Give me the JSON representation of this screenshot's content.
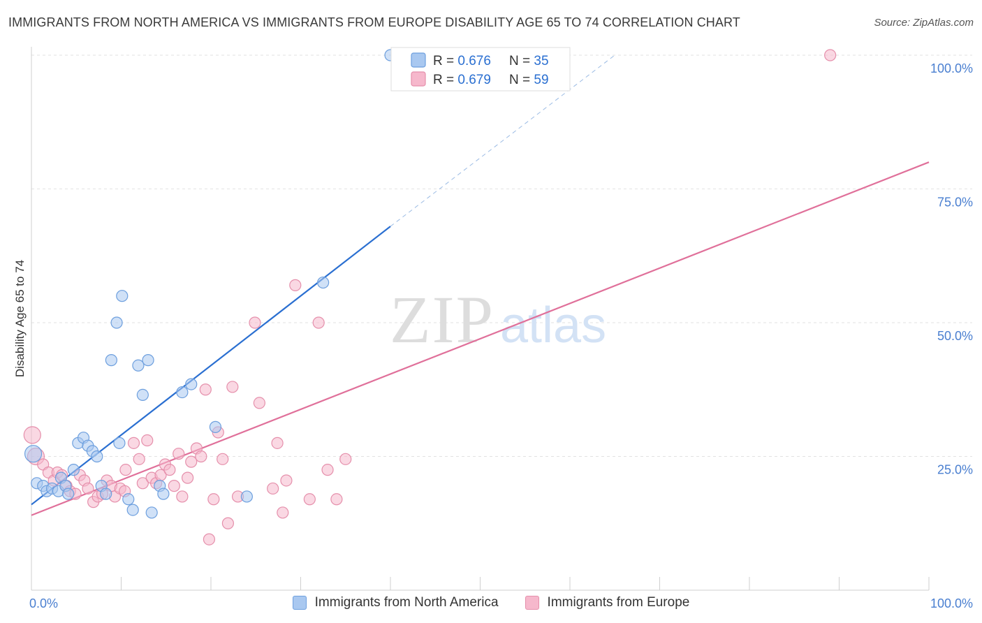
{
  "header": {
    "title": "IMMIGRANTS FROM NORTH AMERICA VS IMMIGRANTS FROM EUROPE DISABILITY AGE 65 TO 74 CORRELATION CHART",
    "source": "Source: ZipAtlas.com"
  },
  "watermark": {
    "zip": "ZIP",
    "atlas": "atlas"
  },
  "colors": {
    "blue_fill": "#a9c8f0",
    "blue_stroke": "#6d9fde",
    "blue_line": "#2a6fd1",
    "pink_fill": "#f6b8cc",
    "pink_stroke": "#e58fab",
    "pink_line": "#e0709a",
    "axis_label_blue": "#4a7fd0"
  },
  "legend_box": {
    "rows": [
      {
        "r_label": "R = ",
        "r_value": "0.676",
        "n_label": "N = ",
        "n_value": "35"
      },
      {
        "r_label": "R = ",
        "r_value": "0.679",
        "n_label": "N = ",
        "n_value": "59"
      }
    ]
  },
  "legend_bottom": {
    "north_america": "Immigrants from North America",
    "europe": "Immigrants from Europe"
  },
  "chart_data": {
    "type": "scatter",
    "title": "IMMIGRANTS FROM NORTH AMERICA VS IMMIGRANTS FROM EUROPE DISABILITY AGE 65 TO 74 CORRELATION CHART",
    "xlabel": "",
    "ylabel": "Disability Age 65 to 74",
    "xlim": [
      0,
      100
    ],
    "ylim": [
      0,
      100
    ],
    "x_tick_labels": [
      "0.0%",
      "100.0%"
    ],
    "y_tick_labels": [
      {
        "value": 25,
        "label": "25.0%"
      },
      {
        "value": 50,
        "label": "50.0%"
      },
      {
        "value": 75,
        "label": "75.0%"
      },
      {
        "value": 100,
        "label": "100.0%"
      }
    ],
    "grid": true,
    "series": [
      {
        "name": "Immigrants from North America",
        "r": 0.676,
        "n": 35,
        "trend": {
          "x0": 0,
          "y0": 16.0,
          "x1": 40,
          "y1": 68.0,
          "dash_to_x": 65,
          "dash_to_y": 100
        },
        "points": [
          [
            0.2,
            25.5
          ],
          [
            0.6,
            20.0
          ],
          [
            1.3,
            19.5
          ],
          [
            1.7,
            18.5
          ],
          [
            2.3,
            19.0
          ],
          [
            3.0,
            18.5
          ],
          [
            3.3,
            21.0
          ],
          [
            3.8,
            19.5
          ],
          [
            4.1,
            18.0
          ],
          [
            4.7,
            22.5
          ],
          [
            5.2,
            27.5
          ],
          [
            5.8,
            28.5
          ],
          [
            6.3,
            27.0
          ],
          [
            6.8,
            26.0
          ],
          [
            7.3,
            25.0
          ],
          [
            7.8,
            19.5
          ],
          [
            8.3,
            18.0
          ],
          [
            8.9,
            43.0
          ],
          [
            9.5,
            50.0
          ],
          [
            9.8,
            27.5
          ],
          [
            10.1,
            55.0
          ],
          [
            10.8,
            17.0
          ],
          [
            11.3,
            15.0
          ],
          [
            11.9,
            42.0
          ],
          [
            12.4,
            36.5
          ],
          [
            13.0,
            43.0
          ],
          [
            13.4,
            14.5
          ],
          [
            14.3,
            19.5
          ],
          [
            14.7,
            18.0
          ],
          [
            16.8,
            37.0
          ],
          [
            17.8,
            38.5
          ],
          [
            20.5,
            30.5
          ],
          [
            24.0,
            17.5
          ],
          [
            32.5,
            57.5
          ],
          [
            40.0,
            100.0
          ]
        ]
      },
      {
        "name": "Immigrants from Europe",
        "r": 0.679,
        "n": 59,
        "trend": {
          "x0": 0,
          "y0": 14.0,
          "x1": 100,
          "y1": 80.0
        },
        "points": [
          [
            0.1,
            29.0
          ],
          [
            0.5,
            25.0
          ],
          [
            1.3,
            23.5
          ],
          [
            1.9,
            22.0
          ],
          [
            2.5,
            20.5
          ],
          [
            2.9,
            22.0
          ],
          [
            3.4,
            21.5
          ],
          [
            3.9,
            19.5
          ],
          [
            4.3,
            18.5
          ],
          [
            4.9,
            18.0
          ],
          [
            5.4,
            21.5
          ],
          [
            5.9,
            20.5
          ],
          [
            6.3,
            19.0
          ],
          [
            6.9,
            16.5
          ],
          [
            7.4,
            17.5
          ],
          [
            7.9,
            18.0
          ],
          [
            8.4,
            20.5
          ],
          [
            8.9,
            19.5
          ],
          [
            9.3,
            17.5
          ],
          [
            9.9,
            19.0
          ],
          [
            10.4,
            18.5
          ],
          [
            10.5,
            22.5
          ],
          [
            11.4,
            27.5
          ],
          [
            12.0,
            24.5
          ],
          [
            12.4,
            20.0
          ],
          [
            12.9,
            28.0
          ],
          [
            13.4,
            21.0
          ],
          [
            13.9,
            20.0
          ],
          [
            14.4,
            21.5
          ],
          [
            14.9,
            23.5
          ],
          [
            15.4,
            22.5
          ],
          [
            15.9,
            19.5
          ],
          [
            16.4,
            25.5
          ],
          [
            16.8,
            17.5
          ],
          [
            17.4,
            21.0
          ],
          [
            17.8,
            24.0
          ],
          [
            18.4,
            26.5
          ],
          [
            18.9,
            25.0
          ],
          [
            19.4,
            37.5
          ],
          [
            19.8,
            9.5
          ],
          [
            20.3,
            17.0
          ],
          [
            20.8,
            29.5
          ],
          [
            21.3,
            24.5
          ],
          [
            21.9,
            12.5
          ],
          [
            22.4,
            38.0
          ],
          [
            23.0,
            17.5
          ],
          [
            24.9,
            50.0
          ],
          [
            25.4,
            35.0
          ],
          [
            26.9,
            19.0
          ],
          [
            27.4,
            27.5
          ],
          [
            28.0,
            14.5
          ],
          [
            28.4,
            20.5
          ],
          [
            29.4,
            57.0
          ],
          [
            31.0,
            17.0
          ],
          [
            32.0,
            50.0
          ],
          [
            33.0,
            22.5
          ],
          [
            34.0,
            17.0
          ],
          [
            35.0,
            24.5
          ],
          [
            89.0,
            100.0
          ]
        ]
      }
    ]
  }
}
